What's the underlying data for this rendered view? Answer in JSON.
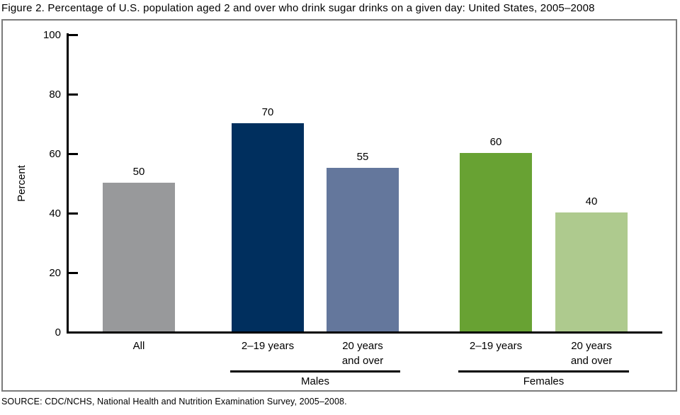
{
  "figure": {
    "title": "Figure 2. Percentage of U.S. population aged 2 and over who drink sugar drinks on a given day: United States, 2005–2008",
    "source": "SOURCE: CDC/NCHS, National Health and Nutrition Examination Survey, 2005–2008."
  },
  "chart_data": {
    "type": "bar",
    "title": "Figure 2. Percentage of U.S. population aged 2 and over who drink sugar drinks on a given day: United States, 2005–2008",
    "xlabel": "",
    "ylabel": "Percent",
    "ylim": [
      0,
      100
    ],
    "yticks": [
      0,
      20,
      40,
      60,
      80,
      100
    ],
    "grid": false,
    "legend_position": "none",
    "categories": [
      "All",
      "2–19 years",
      "20 years and over",
      "2–19 years",
      "20 years and over"
    ],
    "values": [
      50,
      70,
      55,
      60,
      40
    ],
    "bars": [
      {
        "label_lines": [
          "All"
        ],
        "group": "",
        "value": 50,
        "color": "#98999B"
      },
      {
        "label_lines": [
          "2–19 years"
        ],
        "group": "Males",
        "value": 70,
        "color": "#002F5E"
      },
      {
        "label_lines": [
          "20 years",
          "and over"
        ],
        "group": "Males",
        "value": 55,
        "color": "#64779C"
      },
      {
        "label_lines": [
          "2–19 years"
        ],
        "group": "Females",
        "value": 60,
        "color": "#68A233"
      },
      {
        "label_lines": [
          "20 years",
          "and over"
        ],
        "group": "Females",
        "value": 40,
        "color": "#AECA8E"
      }
    ],
    "groups": [
      {
        "label": "Males",
        "from_bar": 1,
        "to_bar": 2
      },
      {
        "label": "Females",
        "from_bar": 3,
        "to_bar": 4
      }
    ],
    "axis_color": "#000000",
    "frame_color": "#7B7B7B",
    "source": "SOURCE: CDC/NCHS, National Health and Nutrition Examination Survey, 2005–2008."
  }
}
